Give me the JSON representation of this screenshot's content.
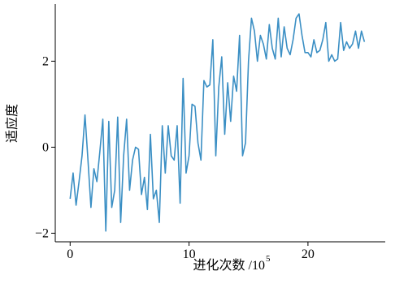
{
  "chart_data": {
    "type": "line",
    "x_label": "进化次数 /10",
    "x_label_sup": "5",
    "y_label": "适应度",
    "x": [
      0,
      0.25,
      0.5,
      0.75,
      1,
      1.25,
      1.5,
      1.75,
      2,
      2.25,
      2.5,
      2.75,
      3,
      3.25,
      3.5,
      3.75,
      4,
      4.25,
      4.5,
      4.75,
      5,
      5.25,
      5.5,
      5.75,
      6,
      6.25,
      6.5,
      6.75,
      7,
      7.25,
      7.5,
      7.75,
      8,
      8.25,
      8.5,
      8.75,
      9,
      9.25,
      9.5,
      9.75,
      10,
      10.25,
      10.5,
      10.75,
      11,
      11.25,
      11.5,
      11.75,
      12,
      12.25,
      12.5,
      12.75,
      13,
      13.25,
      13.5,
      13.75,
      14,
      14.25,
      14.5,
      14.75,
      15,
      15.25,
      15.5,
      15.75,
      16,
      16.25,
      16.5,
      16.75,
      17,
      17.25,
      17.5,
      17.75,
      18,
      18.25,
      18.5,
      18.75,
      19,
      19.25,
      19.5,
      19.75,
      20,
      20.25,
      20.5,
      20.75,
      21,
      21.25,
      21.5,
      21.75,
      22,
      22.25,
      22.5,
      22.75,
      23,
      23.25,
      23.5,
      23.75,
      24,
      24.25,
      24.5,
      24.75
    ],
    "series": [
      {
        "color": "#3b8fc4",
        "values": [
          -1.2,
          -0.6,
          -1.35,
          -0.8,
          -0.2,
          0.75,
          -0.3,
          -1.4,
          -0.5,
          -0.8,
          -0.1,
          0.65,
          -1.95,
          0.6,
          -1.4,
          -1.0,
          0.7,
          -1.75,
          -0.2,
          0.65,
          -1.0,
          -0.3,
          0.0,
          -0.05,
          -1.1,
          -0.7,
          -1.45,
          0.3,
          -1.2,
          -1.0,
          -1.75,
          0.5,
          -0.6,
          0.5,
          -0.2,
          -0.3,
          0.5,
          -1.3,
          1.6,
          -0.6,
          -0.2,
          1.0,
          0.95,
          0.1,
          -0.3,
          1.55,
          1.4,
          1.45,
          2.5,
          -0.2,
          1.4,
          2.1,
          0.3,
          1.5,
          0.6,
          1.65,
          1.3,
          2.6,
          -0.2,
          0.1,
          2.0,
          3.0,
          2.7,
          2.0,
          2.6,
          2.4,
          2.05,
          2.85,
          2.3,
          2.05,
          3.0,
          2.1,
          2.8,
          2.3,
          2.15,
          2.5,
          3.0,
          3.1,
          2.6,
          2.2,
          2.2,
          2.1,
          2.5,
          2.2,
          2.25,
          2.5,
          2.9,
          2.0,
          2.15,
          2.0,
          2.05,
          2.9,
          2.25,
          2.45,
          2.3,
          2.4,
          2.7,
          2.3,
          2.7,
          2.45
        ]
      }
    ],
    "xlim": [
      -1.25,
      26.5
    ],
    "ylim": [
      -2.2,
      3.3
    ],
    "xticks": [
      0,
      10,
      20
    ],
    "yticks": [
      {
        "value": -2,
        "label": "−2"
      },
      0,
      2
    ]
  }
}
